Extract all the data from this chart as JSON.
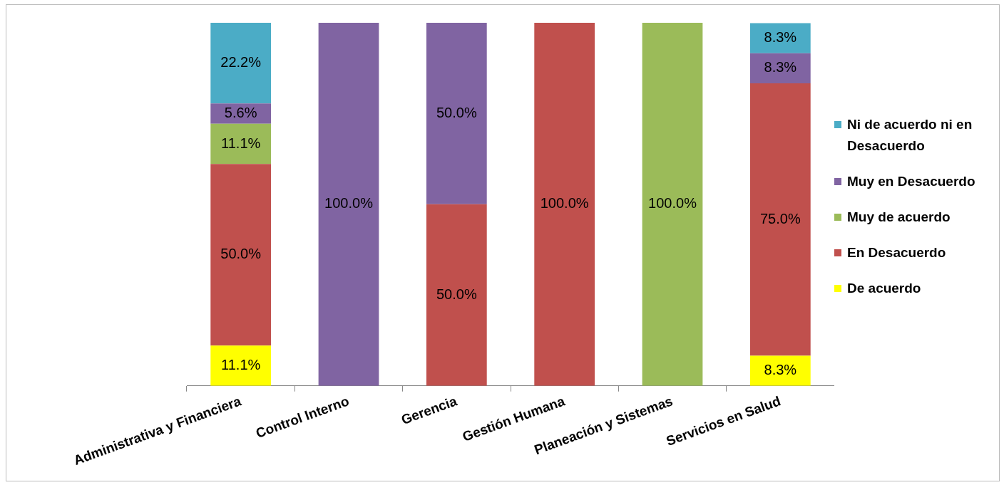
{
  "chart_data": {
    "type": "bar",
    "stacked": true,
    "legend": "right",
    "tick_labels": "x",
    "ylim": [
      0,
      100
    ],
    "categories": [
      "Administrativa y Financiera",
      "Control Interno",
      "Gerencia",
      "Gestión Humana",
      "Planeación y Sistemas",
      "Servicios en Salud"
    ],
    "series": [
      {
        "name": "De acuerdo",
        "color": "#ffff00",
        "values": [
          11.1,
          null,
          null,
          null,
          null,
          8.3
        ],
        "value_labels": [
          "11.1%",
          null,
          null,
          null,
          null,
          "8.3%"
        ]
      },
      {
        "name": "En Desacuerdo",
        "color": "#c0504d",
        "values": [
          50.0,
          null,
          50.0,
          100.0,
          null,
          75.0
        ],
        "value_labels": [
          "50.0%",
          null,
          "50.0%",
          "100.0%",
          null,
          "75.0%"
        ]
      },
      {
        "name": "Muy de acuerdo",
        "color": "#9bbb59",
        "values": [
          11.1,
          null,
          null,
          null,
          100.0,
          null
        ],
        "value_labels": [
          "11.1%",
          null,
          null,
          null,
          "100.0%",
          null
        ]
      },
      {
        "name": "Muy en Desacuerdo",
        "color": "#8064a2",
        "values": [
          5.6,
          100.0,
          50.0,
          null,
          null,
          8.3
        ],
        "value_labels": [
          "5.6%",
          "100.0%",
          "50.0%",
          null,
          null,
          "8.3%"
        ]
      },
      {
        "name": "Ni de acuerdo ni en Desacuerdo",
        "color": "#4bacc6",
        "values": [
          22.2,
          null,
          null,
          null,
          null,
          8.3
        ],
        "value_labels": [
          "22.2%",
          null,
          null,
          null,
          null,
          "8.3%"
        ]
      }
    ]
  }
}
